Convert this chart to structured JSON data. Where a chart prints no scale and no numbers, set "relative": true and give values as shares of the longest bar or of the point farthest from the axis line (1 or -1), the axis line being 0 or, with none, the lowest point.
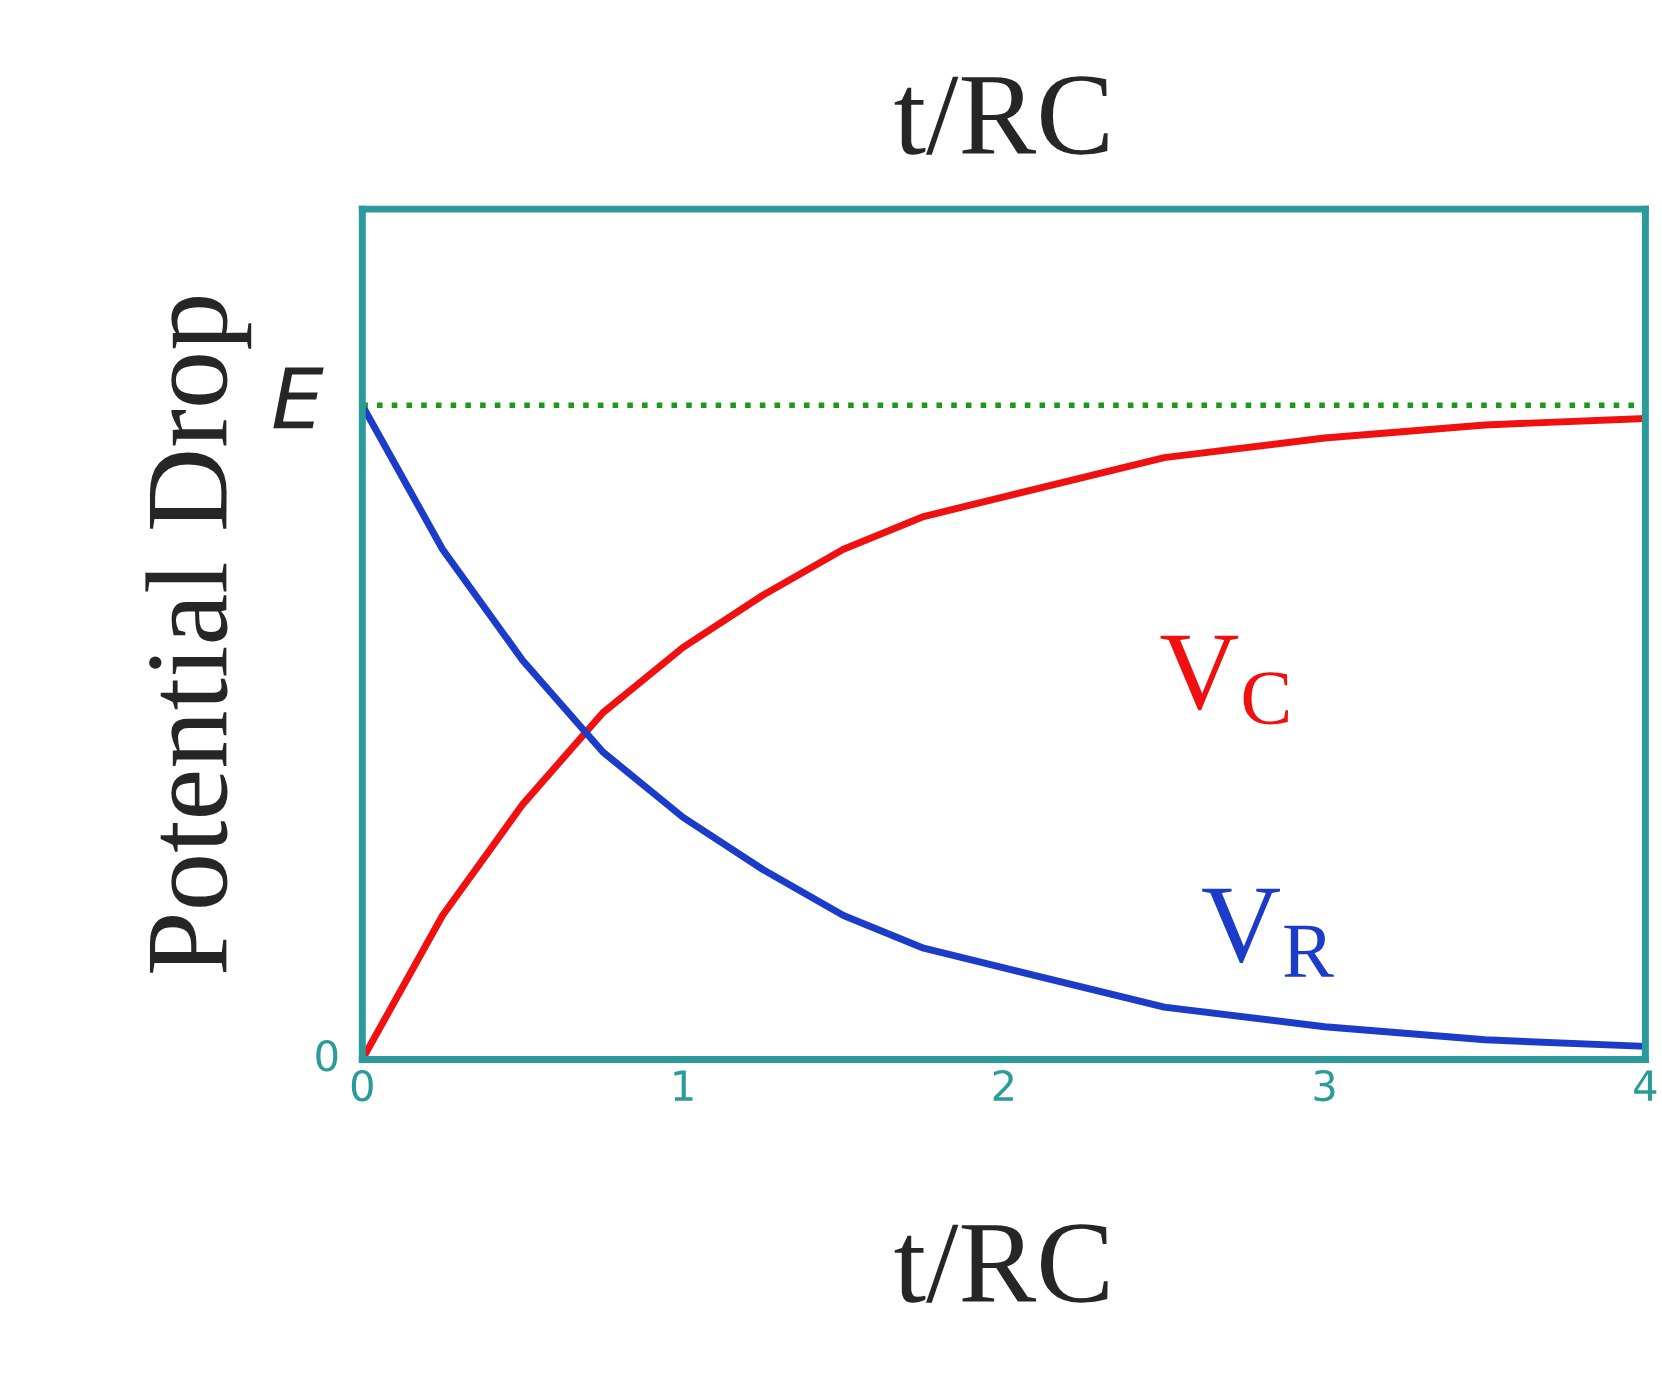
{
  "chart_data": {
    "type": "line",
    "title": "t/RC",
    "xlabel": "t/RC",
    "ylabel": "Potential Drop",
    "relative": true,
    "x": [
      0,
      0.25,
      0.5,
      0.75,
      1,
      1.25,
      1.5,
      1.75,
      2,
      2.5,
      3,
      3.5,
      4
    ],
    "series": [
      {
        "name": "V$_{C}$",
        "color": "#f01010",
        "values": [
          0,
          0.22,
          0.39,
          0.53,
          0.63,
          0.71,
          0.78,
          0.83,
          0.86,
          0.92,
          0.95,
          0.97,
          0.98
        ]
      },
      {
        "name": "V$_{R}$",
        "color": "#1a3cc8",
        "values": [
          1,
          0.78,
          0.61,
          0.47,
          0.37,
          0.29,
          0.22,
          0.17,
          0.14,
          0.08,
          0.05,
          0.03,
          0.02
        ]
      }
    ],
    "xlim": [
      0,
      4
    ],
    "xticks": [
      0,
      1,
      2,
      3,
      4
    ],
    "ref_lines": [
      {
        "axis": "y",
        "value": 1,
        "label": "E",
        "color": "#1a9a1a",
        "line_style": "dotted"
      }
    ],
    "annotations": [
      {
        "text": "0",
        "x": 0,
        "y": 0
      }
    ],
    "grid": false
  }
}
